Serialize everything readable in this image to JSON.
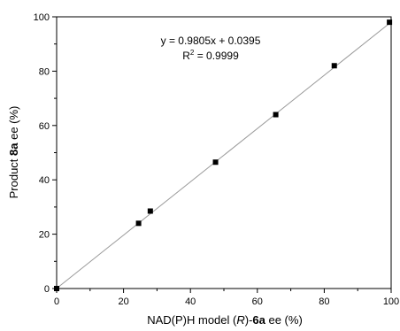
{
  "chart_data": {
    "type": "scatter",
    "title": "",
    "xlabel": {
      "pre": "NAD(P)H model (",
      "italic": "R",
      "mid": ")-",
      "bold": "6a",
      "post": " ee (%)"
    },
    "ylabel": {
      "pre": "Product ",
      "bold": "8a",
      "post": " ee (%)"
    },
    "xlim": [
      0,
      100
    ],
    "ylim": [
      0,
      100
    ],
    "xticks": [
      "0",
      "20",
      "40",
      "60",
      "80",
      "100"
    ],
    "yticks": [
      "0",
      "20",
      "40",
      "60",
      "80",
      "100"
    ],
    "grid": false,
    "legend": "none",
    "series": [
      {
        "x": [
          0,
          24.5,
          28,
          47.5,
          65.5,
          83,
          99.5
        ],
        "y": [
          0,
          24,
          28.5,
          46.5,
          64,
          82,
          98
        ]
      }
    ],
    "fit": {
      "slope": 0.9805,
      "intercept": 0.0395,
      "equation_text": "y = 0.9805x + 0.0395",
      "r2_prefix": "R",
      "r2_sup": "2",
      "r2_suffix": " = 0.9999"
    },
    "colors": {
      "marker": "#000000",
      "fit_line": "#9a9a9a",
      "axis": "#000000"
    }
  }
}
